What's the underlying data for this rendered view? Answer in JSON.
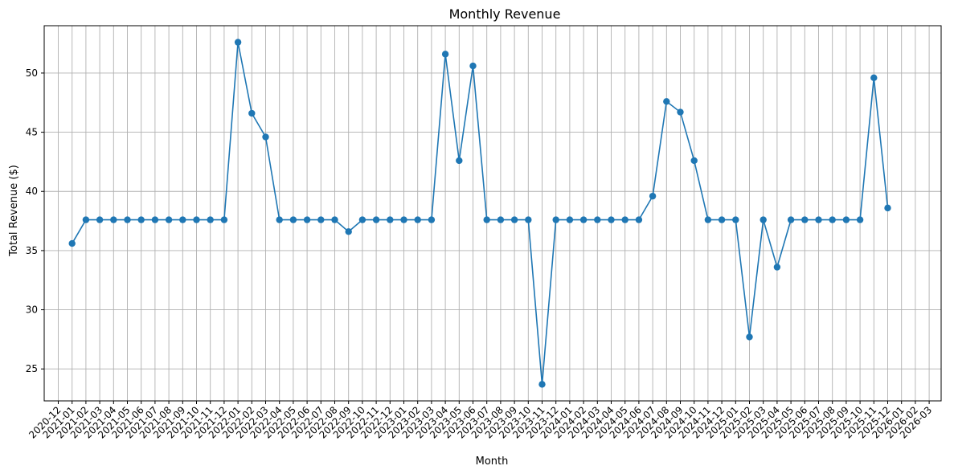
{
  "chart_data": {
    "type": "line",
    "title": "Monthly Revenue",
    "xlabel": "Month",
    "ylabel": "Total Revenue ($)",
    "grid": true,
    "color": "#1f77b4",
    "x_ticks": [
      "2020-12",
      "2021-01",
      "2021-02",
      "2021-03",
      "2021-04",
      "2021-05",
      "2021-06",
      "2021-07",
      "2021-08",
      "2021-09",
      "2021-10",
      "2021-11",
      "2021-12",
      "2022-01",
      "2022-02",
      "2022-03",
      "2022-04",
      "2022-05",
      "2022-06",
      "2022-07",
      "2022-08",
      "2022-09",
      "2022-10",
      "2022-11",
      "2022-12",
      "2023-01",
      "2023-02",
      "2023-03",
      "2023-04",
      "2023-05",
      "2023-06",
      "2023-07",
      "2023-08",
      "2023-09",
      "2023-10",
      "2023-11",
      "2023-12",
      "2024-01",
      "2024-02",
      "2024-03",
      "2024-04",
      "2024-05",
      "2024-06",
      "2024-07",
      "2024-08",
      "2024-09",
      "2024-10",
      "2024-11",
      "2024-12",
      "2025-01",
      "2025-02",
      "2025-03",
      "2025-04",
      "2025-05",
      "2025-06",
      "2025-07",
      "2025-08",
      "2025-09",
      "2025-10",
      "2025-11",
      "2025-12",
      "2026-01",
      "2026-02",
      "2026-03"
    ],
    "y_ticks": [
      25,
      30,
      35,
      40,
      45,
      50
    ],
    "ylim": [
      22.3,
      54.0
    ],
    "x": [
      "2021-01",
      "2021-02",
      "2021-03",
      "2021-04",
      "2021-05",
      "2021-06",
      "2021-07",
      "2021-08",
      "2021-09",
      "2021-10",
      "2021-11",
      "2021-12",
      "2022-01",
      "2022-02",
      "2022-03",
      "2022-04",
      "2022-05",
      "2022-06",
      "2022-07",
      "2022-08",
      "2022-09",
      "2022-10",
      "2022-11",
      "2022-12",
      "2023-01",
      "2023-02",
      "2023-03",
      "2023-04",
      "2023-05",
      "2023-06",
      "2023-07",
      "2023-08",
      "2023-09",
      "2023-10",
      "2023-11",
      "2023-12",
      "2024-01",
      "2024-02",
      "2024-03",
      "2024-04",
      "2024-05",
      "2024-06",
      "2024-07",
      "2024-08",
      "2024-09",
      "2024-10",
      "2024-11",
      "2024-12",
      "2025-01",
      "2025-02",
      "2025-03",
      "2025-04",
      "2025-05",
      "2025-06",
      "2025-07",
      "2025-08",
      "2025-09",
      "2025-10",
      "2025-11",
      "2025-12"
    ],
    "values": [
      35.6,
      37.6,
      37.6,
      37.6,
      37.6,
      37.6,
      37.6,
      37.6,
      37.6,
      37.6,
      37.6,
      37.6,
      52.6,
      46.6,
      44.6,
      37.6,
      37.6,
      37.6,
      37.6,
      37.6,
      36.6,
      37.6,
      37.6,
      37.6,
      37.6,
      37.6,
      37.6,
      51.6,
      42.6,
      50.6,
      37.6,
      37.6,
      37.6,
      37.6,
      23.7,
      37.6,
      37.6,
      37.6,
      37.6,
      37.6,
      37.6,
      37.6,
      39.6,
      47.6,
      46.7,
      42.6,
      37.6,
      37.6,
      37.6,
      27.7,
      37.6,
      33.6,
      37.6,
      37.6,
      37.6,
      37.6,
      37.6,
      37.6,
      49.6,
      38.6
    ]
  }
}
